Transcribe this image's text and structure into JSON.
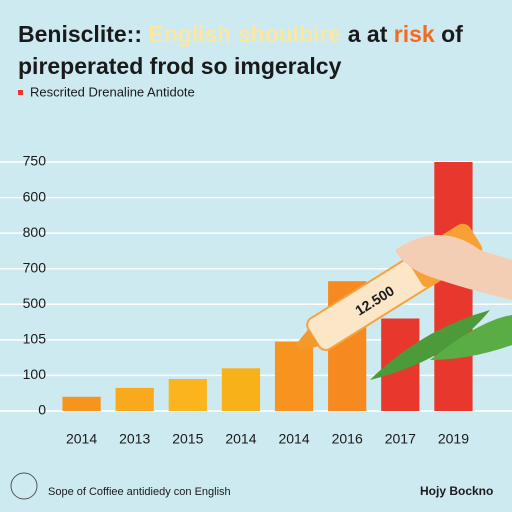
{
  "chart_data": {
    "type": "bar",
    "title": [
      [
        "Benisclite::",
        "English shoulbire",
        "a at",
        "risk",
        "of"
      ],
      "pireperated frod so imgeralcy"
    ],
    "legend": {
      "name": "Rescrited Drenaline Antidote",
      "color": "#e8372c"
    },
    "categories": [
      "2014",
      "2013",
      "2015",
      "2014",
      "2014",
      "2016",
      "2017",
      "2019"
    ],
    "values": [
      0.4,
      0.65,
      0.9,
      1.2,
      1.95,
      3.65,
      2.6,
      7
    ],
    "colors": [
      "#f7941d",
      "#f9a91b",
      "#fbb41e",
      "#f9b11a",
      "#f7931e",
      "#f68a20",
      "#e8372c",
      "#e8372c"
    ],
    "ylim": [
      0,
      7
    ],
    "yticks": [
      {
        "value": 0,
        "label": "0"
      },
      {
        "value": 1,
        "label": "100"
      },
      {
        "value": 2,
        "label": "105"
      },
      {
        "value": 3,
        "label": "500"
      },
      {
        "value": 4,
        "label": "700"
      },
      {
        "value": 5,
        "label": "800"
      },
      {
        "value": 6,
        "label": "600"
      },
      {
        "value": 7,
        "label": "750"
      }
    ],
    "grid": true,
    "annotation": "12.500",
    "footer": {
      "left": "Sope of Coffiee antidiedy con English",
      "right": "Hojy Bockno"
    }
  }
}
